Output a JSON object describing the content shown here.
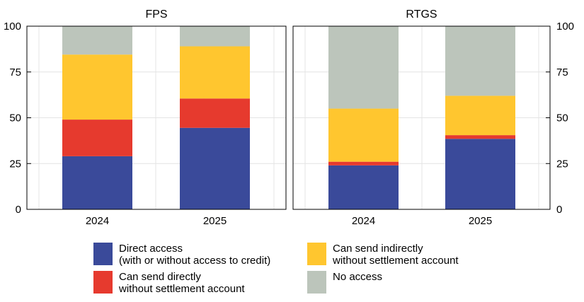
{
  "chart_data": {
    "type": "bar",
    "stacked": true,
    "ylim": [
      0,
      100
    ],
    "yticks": [
      0,
      25,
      50,
      75,
      100
    ],
    "grid": true,
    "legend_position": "bottom",
    "categories": [
      "2024",
      "2025"
    ],
    "colors": {
      "direct": "#3a4a9a",
      "send_direct": "#e63a2e",
      "send_indirect": "#ffc62f",
      "no_access": "#bcc5bb"
    },
    "panels": [
      {
        "title": "FPS",
        "series": [
          {
            "key": "direct",
            "values": [
              29,
              44.5
            ]
          },
          {
            "key": "send_direct",
            "values": [
              20,
              16
            ]
          },
          {
            "key": "send_indirect",
            "values": [
              35.5,
              28.5
            ]
          },
          {
            "key": "no_access",
            "values": [
              15.5,
              11
            ]
          }
        ]
      },
      {
        "title": "RTGS",
        "series": [
          {
            "key": "direct",
            "values": [
              24,
              38.5
            ]
          },
          {
            "key": "send_direct",
            "values": [
              2,
              2
            ]
          },
          {
            "key": "send_indirect",
            "values": [
              29,
              21.5
            ]
          },
          {
            "key": "no_access",
            "values": [
              45,
              38
            ]
          }
        ]
      }
    ],
    "legend": [
      {
        "key": "direct",
        "label": "Direct access\n(with or without access to credit)"
      },
      {
        "key": "send_indirect",
        "label": "Can send indirectly\nwithout settlement account"
      },
      {
        "key": "send_direct",
        "label": "Can send directly\nwithout settlement account"
      },
      {
        "key": "no_access",
        "label": "No access"
      }
    ]
  }
}
